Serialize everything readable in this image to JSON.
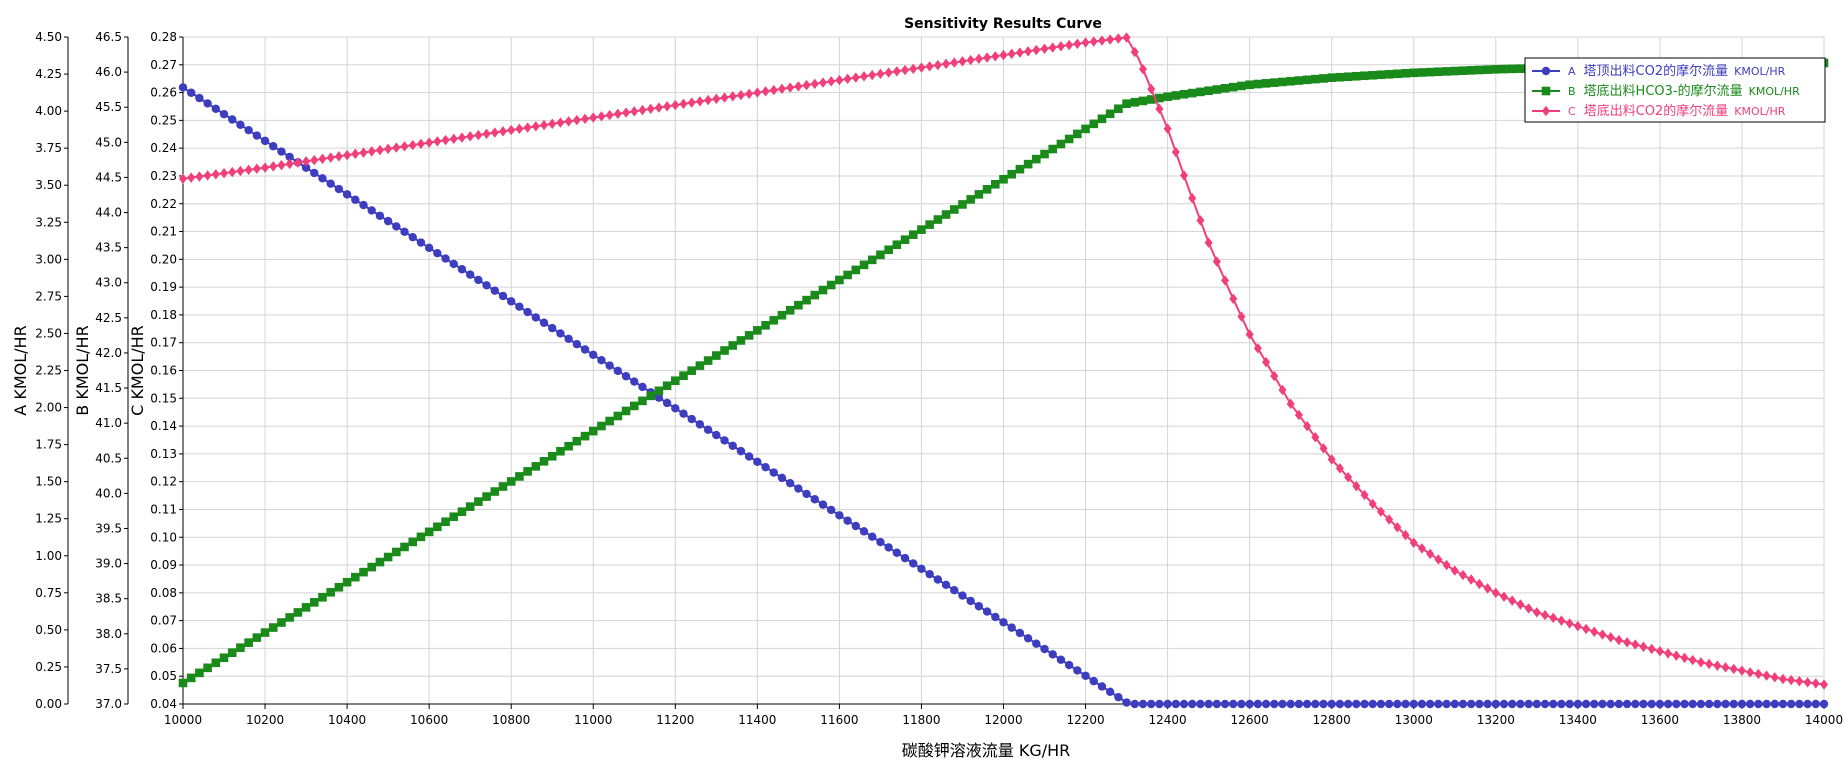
{
  "chart_data": {
    "type": "line",
    "title": "Sensitivity Results Curve",
    "xlabel": "碳酸钾溶液流量  KG/HR",
    "xlim": [
      10000,
      14000
    ],
    "xticks": [
      "10000",
      "10200",
      "10400",
      "10600",
      "10800",
      "11000",
      "11200",
      "11400",
      "11600",
      "11800",
      "12000",
      "12200",
      "12400",
      "12600",
      "12800",
      "13000",
      "13200",
      "13400",
      "13600",
      "13800",
      "14000"
    ],
    "y_axes": [
      {
        "id": "A",
        "label": "A KMOL/HR",
        "ylim": [
          0,
          4.5
        ],
        "ticks": [
          "0.00",
          "0.25",
          "0.50",
          "0.75",
          "1.00",
          "1.25",
          "1.50",
          "1.75",
          "2.00",
          "2.25",
          "2.50",
          "2.75",
          "3.00",
          "3.25",
          "3.50",
          "3.75",
          "4.00",
          "4.25",
          "4.50"
        ]
      },
      {
        "id": "B",
        "label": "B KMOL/HR",
        "ylim": [
          37.0,
          46.5
        ],
        "ticks": [
          "37.0",
          "37.5",
          "38.0",
          "38.5",
          "39.0",
          "39.5",
          "40.0",
          "40.5",
          "41.0",
          "41.5",
          "42.0",
          "42.5",
          "43.0",
          "43.5",
          "44.0",
          "44.5",
          "45.0",
          "45.5",
          "46.0",
          "46.5"
        ]
      },
      {
        "id": "C",
        "label": "C KMOL/HR",
        "ylim": [
          0.04,
          0.28
        ],
        "ticks": [
          "0.04",
          "0.05",
          "0.06",
          "0.07",
          "0.08",
          "0.09",
          "0.10",
          "0.11",
          "0.12",
          "0.13",
          "0.14",
          "0.15",
          "0.16",
          "0.17",
          "0.18",
          "0.19",
          "0.20",
          "0.21",
          "0.22",
          "0.23",
          "0.24",
          "0.25",
          "0.26",
          "0.27",
          "0.28"
        ]
      }
    ],
    "series": [
      {
        "name": "塔顶出料CO2的摩尔流量",
        "legend_prefix": "A",
        "legend_unit": "KMOL/HR",
        "axis": "A",
        "color": "#3d3dbf",
        "marker": "circle",
        "x": [
          10000,
          12300,
          12310,
          14000
        ],
        "y": [
          4.16,
          0.01,
          0.0,
          0.0
        ]
      },
      {
        "name": "塔底出料HCO3-的摩尔流量",
        "legend_prefix": "B",
        "legend_unit": "KMOL/HR",
        "axis": "B",
        "color": "#1a8a1a",
        "marker": "square",
        "x": [
          10000,
          12300,
          12400,
          12600,
          12800,
          13000,
          13200,
          13400,
          13600,
          13800,
          14000
        ],
        "y": [
          37.3,
          45.55,
          45.65,
          45.82,
          45.92,
          45.99,
          46.04,
          46.07,
          46.1,
          46.12,
          46.13
        ]
      },
      {
        "name": "塔底出料CO2的摩尔流量",
        "legend_prefix": "C",
        "legend_unit": "KMOL/HR",
        "axis": "C",
        "color": "#f03f7a",
        "marker": "diamond",
        "x": [
          10000,
          10200,
          10400,
          10600,
          10800,
          11000,
          11200,
          11400,
          11600,
          11800,
          12000,
          12200,
          12300,
          12330,
          12400,
          12450,
          12500,
          12550,
          12600,
          12700,
          12800,
          12900,
          13000,
          13100,
          13200,
          13300,
          13400,
          13500,
          13600,
          13700,
          13800,
          13900,
          14000
        ],
        "y": [
          0.229,
          0.233,
          0.2375,
          0.242,
          0.2465,
          0.251,
          0.2555,
          0.26,
          0.2645,
          0.269,
          0.2735,
          0.278,
          0.2798,
          0.272,
          0.247,
          0.226,
          0.206,
          0.189,
          0.173,
          0.148,
          0.128,
          0.112,
          0.098,
          0.088,
          0.08,
          0.073,
          0.068,
          0.063,
          0.059,
          0.055,
          0.052,
          0.049,
          0.047
        ]
      }
    ],
    "grid": true,
    "legend_position": "top-right"
  }
}
